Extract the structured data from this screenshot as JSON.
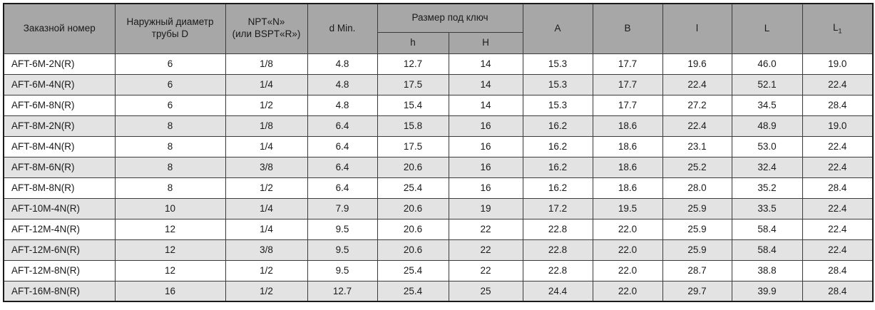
{
  "table": {
    "header": {
      "order_number": "Заказной номер",
      "outer_diameter_line1": "Наружный диаметр",
      "outer_diameter_line2": "трубы D",
      "thread_line1": "NPT«N»",
      "thread_line2": "(или BSPT«R»)",
      "d_min": "d Min.",
      "wrench_size_group": "Размер под ключ",
      "h_small": "h",
      "h_big": "H",
      "a": "A",
      "b": "B",
      "l_small": "l",
      "l_big": "L",
      "l1_base": "L",
      "l1_sub": "1"
    },
    "column_keys": [
      "order-number",
      "tube-diameter",
      "thread-size",
      "d-min",
      "h-small",
      "h-big",
      "a",
      "b",
      "l-small",
      "l-big",
      "l1"
    ],
    "rows": [
      [
        "AFT-6M-2N(R)",
        "6",
        "1/8",
        "4.8",
        "12.7",
        "14",
        "15.3",
        "17.7",
        "19.6",
        "46.0",
        "19.0"
      ],
      [
        "AFT-6M-4N(R)",
        "6",
        "1/4",
        "4.8",
        "17.5",
        "14",
        "15.3",
        "17.7",
        "22.4",
        "52.1",
        "22.4"
      ],
      [
        "AFT-6M-8N(R)",
        "6",
        "1/2",
        "4.8",
        "15.4",
        "14",
        "15.3",
        "17.7",
        "27.2",
        "34.5",
        "28.4"
      ],
      [
        "AFT-8M-2N(R)",
        "8",
        "1/8",
        "6.4",
        "15.8",
        "16",
        "16.2",
        "18.6",
        "22.4",
        "48.9",
        "19.0"
      ],
      [
        "AFT-8M-4N(R)",
        "8",
        "1/4",
        "6.4",
        "17.5",
        "16",
        "16.2",
        "18.6",
        "23.1",
        "53.0",
        "22.4"
      ],
      [
        "AFT-8M-6N(R)",
        "8",
        "3/8",
        "6.4",
        "20.6",
        "16",
        "16.2",
        "18.6",
        "25.2",
        "32.4",
        "22.4"
      ],
      [
        "AFT-8M-8N(R)",
        "8",
        "1/2",
        "6.4",
        "25.4",
        "16",
        "16.2",
        "18.6",
        "28.0",
        "35.2",
        "28.4"
      ],
      [
        "AFT-10M-4N(R)",
        "10",
        "1/4",
        "7.9",
        "20.6",
        "19",
        "17.2",
        "19.5",
        "25.9",
        "33.5",
        "22.4"
      ],
      [
        "AFT-12M-4N(R)",
        "12",
        "1/4",
        "9.5",
        "20.6",
        "22",
        "22.8",
        "22.0",
        "25.9",
        "58.4",
        "22.4"
      ],
      [
        "AFT-12M-6N(R)",
        "12",
        "3/8",
        "9.5",
        "20.6",
        "22",
        "22.8",
        "22.0",
        "25.9",
        "58.4",
        "22.4"
      ],
      [
        "AFT-12M-8N(R)",
        "12",
        "1/2",
        "9.5",
        "25.4",
        "22",
        "22.8",
        "22.0",
        "28.7",
        "38.8",
        "28.4"
      ],
      [
        "AFT-16M-8N(R)",
        "16",
        "1/2",
        "12.7",
        "25.4",
        "25",
        "24.4",
        "22.0",
        "29.7",
        "39.9",
        "28.4"
      ]
    ],
    "colors": {
      "header_bg": "#a7a7a7",
      "stripe_bg": "#e3e3e3",
      "row_bg": "#ffffff",
      "border": "#3b3b3b",
      "outer_border": "#1a1a1a",
      "text": "#1a1a1a"
    }
  }
}
